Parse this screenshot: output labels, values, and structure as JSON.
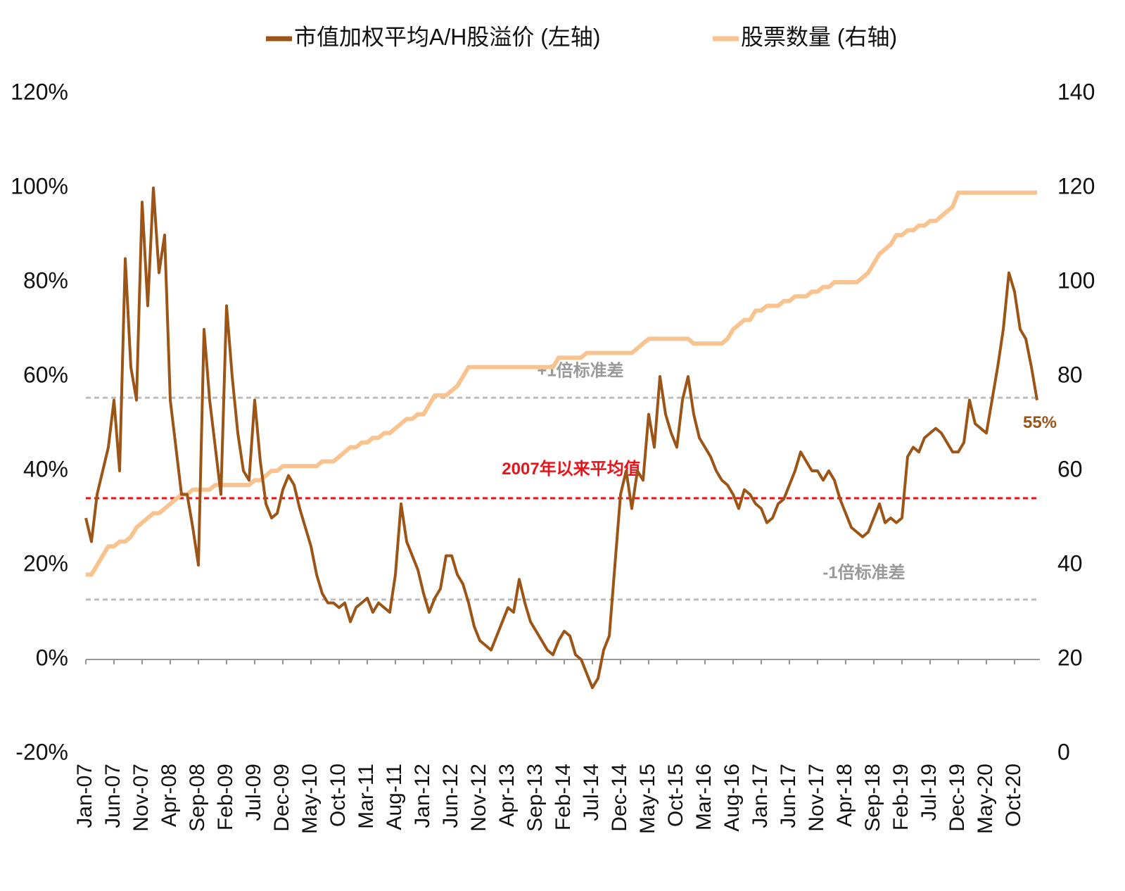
{
  "chart_data": {
    "type": "line",
    "categories": [
      "Jan-07",
      null,
      null,
      null,
      null,
      "Jun-07",
      null,
      null,
      null,
      null,
      "Nov-07",
      null,
      null,
      null,
      null,
      "Apr-08",
      null,
      null,
      null,
      null,
      "Sep-08",
      null,
      null,
      null,
      null,
      "Feb-09",
      null,
      null,
      null,
      null,
      "Jul-09",
      null,
      null,
      null,
      null,
      "Dec-09",
      null,
      null,
      null,
      null,
      "May-10",
      null,
      null,
      null,
      null,
      "Oct-10",
      null,
      null,
      null,
      null,
      "Mar-11",
      null,
      null,
      null,
      null,
      "Aug-11",
      null,
      null,
      null,
      null,
      "Jan-12",
      null,
      null,
      null,
      null,
      "Jun-12",
      null,
      null,
      null,
      null,
      "Nov-12",
      null,
      null,
      null,
      null,
      "Apr-13",
      null,
      null,
      null,
      null,
      "Sep-13",
      null,
      null,
      null,
      null,
      "Feb-14",
      null,
      null,
      null,
      null,
      "Jul-14",
      null,
      null,
      null,
      null,
      "Dec-14",
      null,
      null,
      null,
      null,
      "May-15",
      null,
      null,
      null,
      null,
      "Oct-15",
      null,
      null,
      null,
      null,
      "Mar-16",
      null,
      null,
      null,
      null,
      "Aug-16",
      null,
      null,
      null,
      null,
      "Jan-17",
      null,
      null,
      null,
      null,
      "Jun-17",
      null,
      null,
      null,
      null,
      "Nov-17",
      null,
      null,
      null,
      null,
      "Apr-18",
      null,
      null,
      null,
      null,
      "Sep-18",
      null,
      null,
      null,
      null,
      "Feb-19",
      null,
      null,
      null,
      null,
      "Jul-19",
      null,
      null,
      null,
      null,
      "Dec-19",
      null,
      null,
      null,
      null,
      "May-20",
      null,
      null,
      null,
      null,
      "Oct-20",
      null,
      null,
      null,
      null
    ],
    "series": [
      {
        "name": "市值加权平均A/H股溢价 (左轴)",
        "color": "#9c5516",
        "axis": "y",
        "values": [
          30,
          25,
          35,
          40,
          45,
          55,
          40,
          85,
          62,
          55,
          97,
          75,
          100,
          82,
          90,
          55,
          45,
          35,
          35,
          28,
          20,
          70,
          55,
          45,
          35,
          75,
          60,
          48,
          40,
          38,
          55,
          42,
          33,
          30,
          31,
          36,
          39,
          37,
          32,
          28,
          24,
          18,
          14,
          12,
          12,
          11,
          12,
          8,
          11,
          12,
          13,
          10,
          12,
          11,
          10,
          18,
          33,
          25,
          22,
          19,
          14,
          10,
          13,
          15,
          22,
          22,
          18,
          16,
          12,
          7,
          4,
          3,
          2,
          5,
          8,
          11,
          10,
          17,
          12,
          8,
          6,
          4,
          2,
          1,
          4,
          6,
          5,
          1,
          0,
          -3,
          -6,
          -4,
          2,
          5,
          20,
          35,
          40,
          32,
          40,
          38,
          52,
          45,
          60,
          52,
          48,
          45,
          55,
          60,
          52,
          47,
          45,
          43,
          40,
          38,
          37,
          35,
          32,
          36,
          35,
          33,
          32,
          29,
          30,
          33,
          34,
          37,
          40,
          44,
          42,
          40,
          40,
          38,
          40,
          38,
          34,
          31,
          28,
          27,
          26,
          27,
          30,
          33,
          29,
          30,
          29,
          30,
          43,
          45,
          44,
          47,
          48,
          49,
          48,
          46,
          44,
          44,
          46,
          55,
          50,
          49,
          48,
          55,
          62,
          70,
          82,
          78,
          70,
          68,
          62,
          55
        ]
      },
      {
        "name": "股票数量 (右轴)",
        "color": "#f8c38f",
        "axis": "y2",
        "values": [
          38,
          38,
          40,
          42,
          44,
          44,
          45,
          45,
          46,
          48,
          49,
          50,
          51,
          51,
          52,
          53,
          54,
          55,
          55,
          56,
          56,
          56,
          56,
          57,
          57,
          57,
          57,
          57,
          57,
          57,
          58,
          58,
          59,
          60,
          60,
          61,
          61,
          61,
          61,
          61,
          61,
          61,
          62,
          62,
          62,
          63,
          64,
          65,
          65,
          66,
          66,
          67,
          67,
          68,
          68,
          69,
          70,
          71,
          71,
          72,
          72,
          74,
          76,
          76,
          76,
          77,
          78,
          80,
          82,
          82,
          82,
          82,
          82,
          82,
          82,
          82,
          82,
          82,
          82,
          82,
          82,
          82,
          82,
          82,
          84,
          84,
          84,
          84,
          84,
          85,
          85,
          85,
          85,
          85,
          85,
          85,
          85,
          85,
          86,
          87,
          88,
          88,
          88,
          88,
          88,
          88,
          88,
          88,
          87,
          87,
          87,
          87,
          87,
          87,
          88,
          90,
          91,
          92,
          92,
          94,
          94,
          95,
          95,
          95,
          96,
          96,
          97,
          97,
          97,
          98,
          98,
          99,
          99,
          100,
          100,
          100,
          100,
          100,
          101,
          102,
          104,
          106,
          107,
          108,
          110,
          110,
          111,
          111,
          112,
          112,
          113,
          113,
          114,
          115,
          116,
          119,
          119,
          119,
          119,
          119,
          119,
          119,
          119,
          119,
          119,
          119,
          119,
          119,
          119,
          119
        ]
      }
    ],
    "ylim": [
      -20,
      120
    ],
    "yticks": [
      {
        "value": -20,
        "label": "-20%"
      },
      {
        "value": 0,
        "label": "0%"
      },
      {
        "value": 20,
        "label": "20%"
      },
      {
        "value": 40,
        "label": "40%"
      },
      {
        "value": 60,
        "label": "60%"
      },
      {
        "value": 80,
        "label": "80%"
      },
      {
        "value": 100,
        "label": "100%"
      },
      {
        "value": 120,
        "label": "120%"
      }
    ],
    "y2lim": [
      0,
      140
    ],
    "y2ticks": [
      0,
      20,
      40,
      60,
      80,
      100,
      120,
      140
    ],
    "reference_lines": [
      {
        "value": 55.5,
        "label": "+1倍标准差",
        "color": "#bdbdbd"
      },
      {
        "value": 34.2,
        "label": "2007年以来平均值",
        "color": "#e8141b"
      },
      {
        "value": 12.7,
        "label": "-1倍标准差",
        "color": "#bdbdbd"
      }
    ],
    "annotations": [
      {
        "text": "55%",
        "value": 55,
        "color": "#9c5516"
      }
    ],
    "legend": "top"
  }
}
